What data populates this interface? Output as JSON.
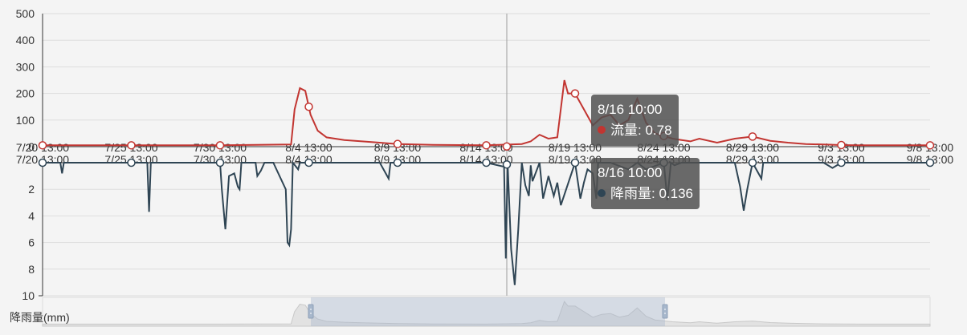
{
  "chart_data": {
    "type": "line",
    "x_ticks": [
      "7/20 13:00",
      "7/25 13:00",
      "7/30 13:00",
      "8/4 13:00",
      "8/9 13:00",
      "8/14 13:00",
      "8/19 13:00",
      "8/24 13:00",
      "8/29 13:00",
      "9/3 13:00",
      "9/8 13:00"
    ],
    "top_axis": {
      "ticks": [
        0,
        100,
        200,
        300,
        400,
        500
      ],
      "ylim": [
        0,
        500
      ]
    },
    "bottom_axis": {
      "ticks": [
        0,
        2,
        4,
        6,
        8,
        10
      ],
      "ylim": [
        0,
        10
      ],
      "inverted": true,
      "label": "降雨量(mm)"
    },
    "series": [
      {
        "name": "流量",
        "color": "#c23531",
        "x": [
          0,
          5,
          10,
          14,
          14.2,
          14.5,
          14.8,
          15.1,
          15.5,
          16,
          17,
          18,
          19,
          20,
          22,
          25,
          27,
          27.5,
          28,
          28.5,
          29,
          29.4,
          29.6,
          30,
          31,
          31.5,
          32,
          32.5,
          33,
          33.5,
          34,
          34.5,
          35,
          35.5,
          36,
          36.5,
          37,
          38,
          39,
          40,
          41,
          42,
          43,
          44,
          45,
          46,
          50
        ],
        "values": [
          5,
          5,
          5,
          8,
          140,
          220,
          210,
          120,
          60,
          35,
          25,
          20,
          15,
          10,
          7,
          5,
          10,
          20,
          45,
          30,
          35,
          250,
          200,
          200,
          80,
          110,
          120,
          80,
          100,
          180,
          90,
          50,
          40,
          30,
          25,
          20,
          30,
          15,
          30,
          38,
          22,
          15,
          10,
          8,
          6,
          5,
          5
        ]
      },
      {
        "name": "降雨量",
        "color": "#2f4554",
        "x": [
          0,
          1,
          1.1,
          1.2,
          5,
          5.9,
          6,
          6.1,
          8,
          10,
          10.1,
          10.3,
          10.5,
          10.8,
          11,
          11.1,
          11.2,
          12,
          12.1,
          12.3,
          12.5,
          13,
          13.7,
          13.8,
          13.9,
          14,
          14.1,
          14.4,
          14.5,
          16,
          19,
          19.5,
          19.6,
          19.7,
          20,
          25,
          26,
          26.1,
          26.2,
          26.4,
          26.6,
          26.8,
          27,
          27.2,
          27.4,
          27.5,
          27.6,
          28,
          28.2,
          28.5,
          28.8,
          29,
          29.2,
          30,
          30.3,
          30.5,
          30.7,
          31,
          31.2,
          31.3,
          32,
          33,
          33.5,
          34,
          35,
          35.2,
          35.4,
          35.6,
          36,
          38,
          39,
          39.3,
          39.5,
          39.7,
          40,
          40.5,
          40.6,
          41,
          44,
          44.5,
          45,
          46,
          50
        ],
        "values": [
          0,
          0,
          0.8,
          0,
          0,
          0,
          3.7,
          0,
          0,
          0,
          2,
          5,
          1,
          0.8,
          1.8,
          2,
          0,
          0,
          1,
          0.6,
          0,
          0,
          2,
          6,
          6.2,
          5,
          0,
          0.5,
          0,
          0,
          0,
          1.2,
          0,
          0,
          0,
          0,
          0.3,
          7.2,
          0,
          6.5,
          9.2,
          5,
          0,
          1.7,
          2.5,
          0.2,
          1.4,
          0,
          2.7,
          1,
          2.5,
          1.5,
          3.2,
          0,
          2.7,
          1.5,
          0.5,
          0.8,
          2.7,
          0,
          0,
          0.5,
          0,
          0.5,
          0,
          2.8,
          0,
          0.2,
          0,
          0,
          0,
          1.8,
          3.6,
          2,
          0,
          1.2,
          0,
          0,
          0,
          0.4,
          0,
          0,
          0
        ]
      }
    ],
    "grid": true
  },
  "tooltips": [
    {
      "time": "8/16 10:00",
      "label": "流量: 0.78"
    },
    {
      "time": "8/16 10:00",
      "label": "降雨量: 0.136"
    }
  ],
  "colors": {
    "flow": "#c23531",
    "rain": "#2f4554",
    "grid": "#dddddd"
  }
}
